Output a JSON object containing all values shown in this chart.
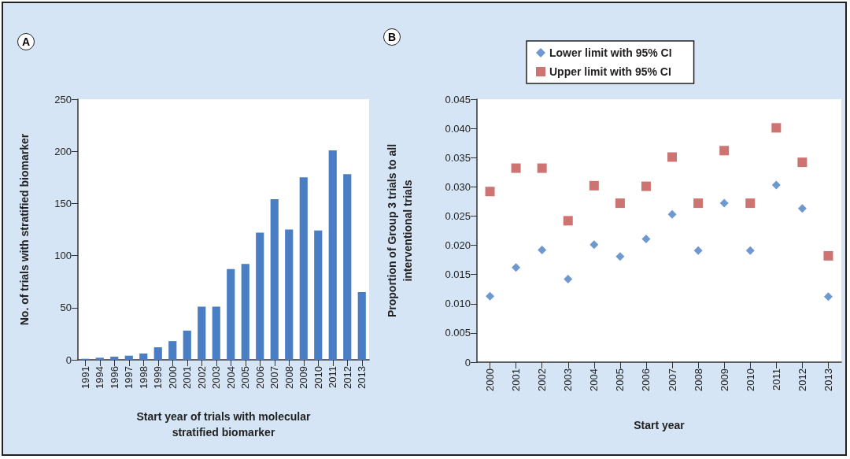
{
  "chart_data": [
    {
      "type": "bar",
      "annotations": [
        "A"
      ],
      "xlabel": "Start year of trials with molecular\nstratified biomarker",
      "ylabel": "No. of trials with stratified biomarker",
      "categories": [
        "1991",
        "1994",
        "1996",
        "1997",
        "1998",
        "1999",
        "2000",
        "2001",
        "2002",
        "2003",
        "2004",
        "2005",
        "2006",
        "2007",
        "2008",
        "2009",
        "2010",
        "2011",
        "2012",
        "2013"
      ],
      "values": [
        1,
        2,
        3,
        4,
        6,
        12,
        18,
        28,
        51,
        51,
        87,
        92,
        122,
        154,
        125,
        175,
        124,
        201,
        178,
        65
      ],
      "color": "#4a7ec4",
      "ylim": [
        0,
        250
      ],
      "yticks": [
        0,
        50,
        100,
        150,
        200,
        250
      ],
      "grid": false
    },
    {
      "type": "scatter",
      "annotations": [
        "B"
      ],
      "xlabel": "Start year",
      "ylabel": "Proportion of Group 3 trials to all\ninterventional trials",
      "categories": [
        "2000",
        "2001",
        "2002",
        "2003",
        "2004",
        "2005",
        "2006",
        "2007",
        "2008",
        "2009",
        "2010",
        "2011",
        "2012",
        "2013"
      ],
      "series": [
        {
          "name": "Lower limit with 95% CI",
          "color": "#4a7ec4",
          "marker": "diamond",
          "values": [
            0.0113,
            0.0162,
            0.0192,
            0.0142,
            0.0201,
            0.0181,
            0.0211,
            0.0253,
            0.0191,
            0.0272,
            0.0191,
            0.0303,
            0.0263,
            0.0112
          ]
        },
        {
          "name": "Upper limit with 95% CI",
          "color": "#c0504d",
          "marker": "square",
          "values": [
            0.0292,
            0.0332,
            0.0332,
            0.0242,
            0.0302,
            0.0272,
            0.0301,
            0.0351,
            0.0272,
            0.0362,
            0.0272,
            0.0401,
            0.0342,
            0.0182
          ]
        }
      ],
      "ylim": [
        0,
        0.045
      ],
      "yticks": [
        {
          "value": 0,
          "label": "0"
        },
        {
          "value": 0.005,
          "label": "0.005"
        },
        {
          "value": 0.01,
          "label": "0.010"
        },
        {
          "value": 0.015,
          "label": "0.015"
        },
        {
          "value": 0.02,
          "label": "0.020"
        },
        {
          "value": 0.025,
          "label": "0.025"
        },
        {
          "value": 0.03,
          "label": "0.030"
        },
        {
          "value": 0.035,
          "label": "0.035"
        },
        {
          "value": 0.04,
          "label": "0.040"
        },
        {
          "value": 0.045,
          "label": "0.045"
        }
      ],
      "grid": false,
      "legend": "top"
    }
  ]
}
